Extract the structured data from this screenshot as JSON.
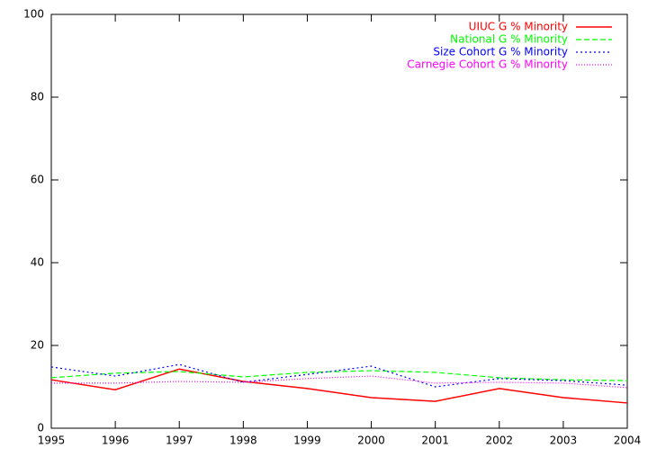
{
  "chart_data": {
    "type": "line",
    "x": [
      1995,
      1996,
      1997,
      1998,
      1999,
      2000,
      2001,
      2002,
      2003,
      2004
    ],
    "xlim": [
      1995,
      2004
    ],
    "xticks": [
      1995,
      1996,
      1997,
      1998,
      1999,
      2000,
      2001,
      2002,
      2003,
      2004
    ],
    "ylim": [
      0,
      100
    ],
    "yticks": [
      0,
      20,
      40,
      60,
      80,
      100
    ],
    "legend": "top-right",
    "series": [
      {
        "name": "UIUC G % Minority",
        "color": "#ff0000",
        "style": "solid",
        "values": [
          11.7,
          9.3,
          14.3,
          11.3,
          9.6,
          7.4,
          6.5,
          9.6,
          7.4,
          6.1
        ]
      },
      {
        "name": "National G % Minority",
        "color": "#00ff00",
        "style": "dashed",
        "values": [
          12.2,
          13.3,
          13.7,
          12.4,
          13.5,
          13.9,
          13.5,
          12.2,
          11.7,
          11.5
        ]
      },
      {
        "name": "Size Cohort G % Minority",
        "color": "#0000ff",
        "style": "dotted",
        "values": [
          14.8,
          12.6,
          15.4,
          11.1,
          13.0,
          15.0,
          10.0,
          12.0,
          11.5,
          10.4
        ]
      },
      {
        "name": "Carnegie Cohort G % Minority",
        "color": "#ff00ff",
        "style": "fine-dotted",
        "values": [
          10.9,
          10.9,
          11.3,
          11.1,
          12.0,
          12.6,
          10.9,
          11.1,
          10.9,
          9.8
        ]
      }
    ]
  }
}
